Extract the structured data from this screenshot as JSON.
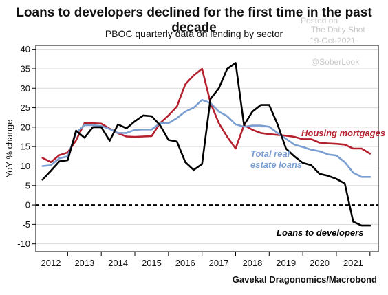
{
  "header": {
    "title": "Loans to developers declined for the first time in the past decade",
    "subtitle": "PBOC quarterly data on lending by sector"
  },
  "watermark": {
    "line1": "Posted on",
    "line2": "The Daily Shot",
    "line3": "19-Oct-2021",
    "line4": "@SoberLook"
  },
  "footer": {
    "source": "Gavekal Dragonomics/Macrobond"
  },
  "colors": {
    "housing": "#b5202e",
    "real_estate": "#7b9ed1",
    "developers": "#000000",
    "grid": "#d9d9d9",
    "zero_line": "#000000"
  },
  "chart_data": {
    "type": "line",
    "ylabel": "YoY % change",
    "ylim": [
      -12,
      41
    ],
    "xlim": [
      2011.55,
      2021.75
    ],
    "yticks": [
      -10,
      -5,
      0,
      5,
      10,
      15,
      20,
      25,
      30,
      35,
      40
    ],
    "xticks": [
      {
        "label": "2012",
        "value": 2012.0
      },
      {
        "label": "2013",
        "value": 2013.0
      },
      {
        "label": "2014",
        "value": 2014.0
      },
      {
        "label": "2015",
        "value": 2015.0
      },
      {
        "label": "2016",
        "value": 2016.0
      },
      {
        "label": "2017",
        "value": 2017.0
      },
      {
        "label": "2018",
        "value": 2018.0
      },
      {
        "label": "2019",
        "value": 2019.0
      },
      {
        "label": "2020",
        "value": 2020.0
      },
      {
        "label": "2021",
        "value": 2021.0
      }
    ],
    "grid": true,
    "zero_line": "dashed",
    "series": [
      {
        "name": "Housing mortgages",
        "color_key": "housing",
        "x": [
          2011.75,
          2012.0,
          2012.25,
          2012.5,
          2012.75,
          2013.0,
          2013.25,
          2013.5,
          2013.75,
          2014.0,
          2014.25,
          2014.5,
          2014.75,
          2015.0,
          2015.25,
          2015.5,
          2015.75,
          2016.0,
          2016.25,
          2016.5,
          2016.75,
          2017.0,
          2017.25,
          2017.5,
          2017.75,
          2018.0,
          2018.25,
          2018.5,
          2018.75,
          2019.0,
          2019.25,
          2019.5,
          2019.75,
          2020.0,
          2020.25,
          2020.5,
          2020.75,
          2021.0,
          2021.25,
          2021.5
        ],
        "y": [
          12.1,
          11.0,
          12.8,
          13.5,
          16.6,
          21.0,
          21.0,
          20.9,
          19.6,
          18.4,
          17.6,
          17.5,
          17.6,
          17.7,
          21.0,
          23.0,
          25.3,
          31.0,
          33.3,
          35.0,
          26.3,
          21.0,
          17.5,
          14.5,
          20.5,
          19.3,
          18.5,
          18.2,
          18.0,
          17.8,
          17.5,
          16.9,
          16.9,
          16.0,
          15.8,
          15.7,
          15.5,
          14.5,
          14.5,
          13.2
        ]
      },
      {
        "name": "Total real estate loans",
        "color_key": "real_estate",
        "x": [
          2011.75,
          2012.0,
          2012.25,
          2012.5,
          2012.75,
          2013.0,
          2013.25,
          2013.5,
          2013.75,
          2014.0,
          2014.25,
          2014.5,
          2014.75,
          2015.0,
          2015.25,
          2015.5,
          2015.75,
          2016.0,
          2016.25,
          2016.5,
          2016.75,
          2017.0,
          2017.25,
          2017.5,
          2017.75,
          2018.0,
          2018.25,
          2018.5,
          2018.75,
          2019.0,
          2019.25,
          2019.5,
          2019.75,
          2020.0,
          2020.25,
          2020.5,
          2020.75,
          2021.0,
          2021.25,
          2021.5
        ],
        "y": [
          10.0,
          10.2,
          12.0,
          12.5,
          18.5,
          20.5,
          20.5,
          20.3,
          19.5,
          18.5,
          18.5,
          19.3,
          19.4,
          19.4,
          21.0,
          21.0,
          22.3,
          24.0,
          25.0,
          27.0,
          26.2,
          24.0,
          22.8,
          20.7,
          20.1,
          20.4,
          20.4,
          20.1,
          18.5,
          17.0,
          15.5,
          14.9,
          14.2,
          13.8,
          13.0,
          12.7,
          11.0,
          8.3,
          7.2,
          7.2
        ]
      },
      {
        "name": "Loans to developers",
        "color_key": "developers",
        "x": [
          2011.75,
          2012.0,
          2012.25,
          2012.5,
          2012.75,
          2013.0,
          2013.25,
          2013.5,
          2013.75,
          2014.0,
          2014.25,
          2014.5,
          2014.75,
          2015.0,
          2015.25,
          2015.5,
          2015.75,
          2016.0,
          2016.25,
          2016.5,
          2016.75,
          2017.0,
          2017.25,
          2017.5,
          2017.75,
          2018.0,
          2018.25,
          2018.5,
          2018.75,
          2019.0,
          2019.25,
          2019.5,
          2019.75,
          2020.0,
          2020.25,
          2020.5,
          2020.75,
          2021.0,
          2021.25,
          2021.5
        ],
        "y": [
          6.5,
          8.8,
          11.2,
          11.5,
          19.1,
          17.3,
          20.0,
          20.0,
          16.5,
          20.7,
          19.7,
          21.5,
          23.0,
          22.8,
          20.5,
          16.7,
          16.3,
          11.0,
          9.0,
          10.5,
          27.2,
          30.0,
          35.0,
          36.5,
          20.5,
          24.0,
          25.7,
          25.7,
          20.7,
          14.5,
          12.5,
          10.8,
          10.2,
          8.0,
          7.5,
          6.7,
          5.5,
          -4.3,
          -5.3,
          -5.3
        ]
      }
    ],
    "labels": [
      {
        "text": "Housing mortgages",
        "color_key": "housing"
      },
      {
        "text": "Total real",
        "color_key": "real_estate"
      },
      {
        "text": "estate loans",
        "color_key": "real_estate"
      },
      {
        "text": "Loans to developers",
        "color_key": "developers"
      }
    ]
  }
}
